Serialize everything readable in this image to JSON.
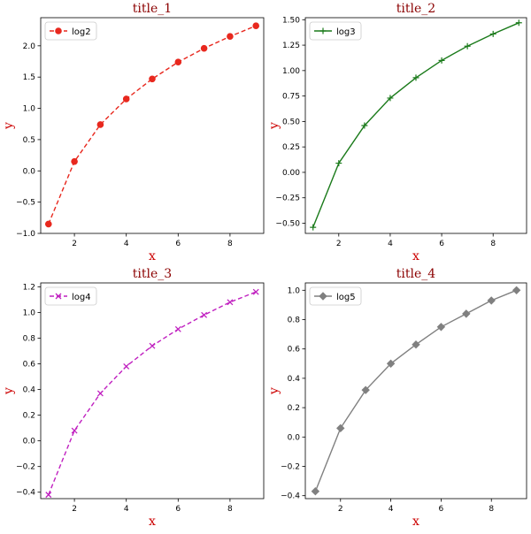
{
  "colors": {
    "title": "#8b0000",
    "axis_label": "#cc0000"
  },
  "chart_data": [
    {
      "type": "line",
      "title": "title_1",
      "xlabel": "x",
      "ylabel": "y",
      "xlim": [
        0.7,
        9.3
      ],
      "ylim": [
        -1.0,
        2.45
      ],
      "xticks": [
        2,
        4,
        6,
        8
      ],
      "yticks": [
        -1.0,
        -0.5,
        0.0,
        0.5,
        1.0,
        1.5,
        2.0
      ],
      "ytick_labels": [
        "−1.0",
        "−0.5",
        "0.0",
        "0.5",
        "1.0",
        "1.5",
        "2.0"
      ],
      "legend_position": "top-left",
      "series": [
        {
          "name": "log2",
          "color": "#e8281e",
          "line_style": "dashed",
          "marker": "circle",
          "x": [
            1,
            2,
            3,
            4,
            5,
            6,
            7,
            8,
            9
          ],
          "values": [
            -0.85,
            0.15,
            0.74,
            1.15,
            1.47,
            1.74,
            1.96,
            2.15,
            2.32
          ]
        }
      ]
    },
    {
      "type": "line",
      "title": "title_2",
      "xlabel": "x",
      "ylabel": "y",
      "xlim": [
        0.7,
        9.3
      ],
      "ylim": [
        -0.6,
        1.52
      ],
      "xticks": [
        2,
        4,
        6,
        8
      ],
      "yticks": [
        -0.5,
        -0.25,
        0.0,
        0.25,
        0.5,
        0.75,
        1.0,
        1.25,
        1.5
      ],
      "ytick_labels": [
        "−0.50",
        "−0.25",
        "0.00",
        "0.25",
        "0.50",
        "0.75",
        "1.00",
        "1.25",
        "1.50"
      ],
      "legend_position": "top-left",
      "series": [
        {
          "name": "log3",
          "color": "#1a7a1a",
          "line_style": "solid",
          "marker": "plus",
          "x": [
            1,
            2,
            3,
            4,
            5,
            6,
            7,
            8,
            9
          ],
          "values": [
            -0.54,
            0.09,
            0.46,
            0.73,
            0.93,
            1.1,
            1.24,
            1.36,
            1.47
          ]
        }
      ]
    },
    {
      "type": "line",
      "title": "title_3",
      "xlabel": "x",
      "ylabel": "y",
      "xlim": [
        0.7,
        9.3
      ],
      "ylim": [
        -0.45,
        1.23
      ],
      "xticks": [
        2,
        4,
        6,
        8
      ],
      "yticks": [
        -0.4,
        -0.2,
        0.0,
        0.2,
        0.4,
        0.6,
        0.8,
        1.0,
        1.2
      ],
      "ytick_labels": [
        "−0.4",
        "−0.2",
        "0.0",
        "0.2",
        "0.4",
        "0.6",
        "0.8",
        "1.0",
        "1.2"
      ],
      "legend_position": "top-left",
      "series": [
        {
          "name": "log4",
          "color": "#c020c0",
          "line_style": "dashed",
          "marker": "x",
          "x": [
            1,
            2,
            3,
            4,
            5,
            6,
            7,
            8,
            9
          ],
          "values": [
            -0.42,
            0.08,
            0.37,
            0.58,
            0.74,
            0.87,
            0.98,
            1.08,
            1.16
          ]
        }
      ]
    },
    {
      "type": "line",
      "title": "title_4",
      "xlabel": "x",
      "ylabel": "y",
      "xlim": [
        0.6,
        9.4
      ],
      "ylim": [
        -0.42,
        1.05
      ],
      "xticks": [
        2,
        4,
        6,
        8
      ],
      "yticks": [
        -0.4,
        -0.2,
        0.0,
        0.2,
        0.4,
        0.6,
        0.8,
        1.0
      ],
      "ytick_labels": [
        "−0.4",
        "−0.2",
        "0.0",
        "0.2",
        "0.4",
        "0.6",
        "0.8",
        "1.0"
      ],
      "legend_position": "top-left",
      "series": [
        {
          "name": "log5",
          "color": "#808080",
          "line_style": "solid",
          "marker": "diamond",
          "x": [
            1,
            2,
            3,
            4,
            5,
            6,
            7,
            8,
            9
          ],
          "values": [
            -0.37,
            0.06,
            0.32,
            0.5,
            0.63,
            0.75,
            0.84,
            0.93,
            1.0
          ]
        }
      ]
    }
  ]
}
